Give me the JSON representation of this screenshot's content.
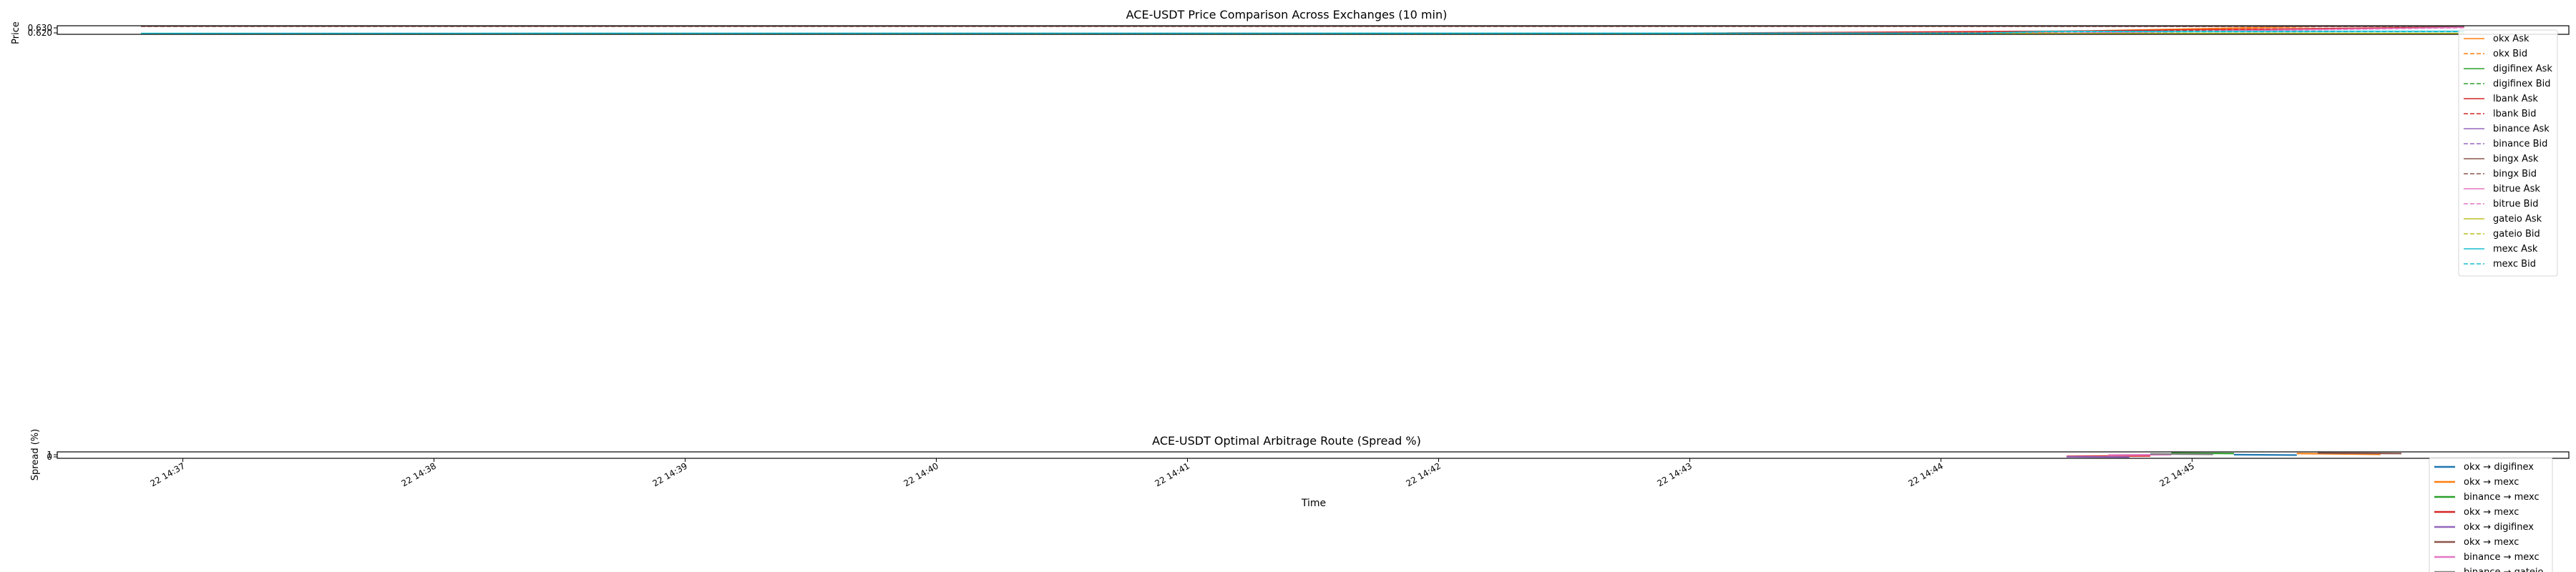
{
  "chart_data": [
    {
      "type": "line",
      "title": "ACE-USDT Price Comparison Across Exchanges (10 min)",
      "xlabel": "",
      "ylabel": "Price",
      "yticks": [
        "0.620",
        "0.630"
      ],
      "ylim": [
        0.618,
        0.631
      ],
      "x_range": [
        "22 14:36:30",
        "22 14:46:30"
      ],
      "grid": false,
      "legend_position": "upper right",
      "series": [
        {
          "name": "okx Ask",
          "color": "#ff7f0e",
          "style": "solid",
          "x": [
            "22 14:36:50",
            "22 14:40:00",
            "22 14:43:00",
            "22 14:44:20",
            "22 14:44:40",
            "22 14:45:30",
            "22 14:46:05"
          ],
          "y": [
            0.619,
            0.6195,
            0.62,
            0.621,
            0.624,
            0.63,
            0.6305
          ]
        },
        {
          "name": "okx Bid",
          "color": "#ff7f0e",
          "style": "dashed",
          "x": [
            "22 14:36:50",
            "22 14:40:00",
            "22 14:43:00",
            "22 14:44:20",
            "22 14:44:40",
            "22 14:45:30",
            "22 14:46:05"
          ],
          "y": [
            0.6185,
            0.619,
            0.6195,
            0.6205,
            0.6235,
            0.6295,
            0.63
          ]
        },
        {
          "name": "digifinex Ask",
          "color": "#2ca02c",
          "style": "solid",
          "x": [
            "22 14:36:50",
            "22 14:46:05"
          ],
          "y": [
            0.6192,
            0.6196
          ]
        },
        {
          "name": "digifinex Bid",
          "color": "#2ca02c",
          "style": "dashed",
          "x": [
            "22 14:36:50",
            "22 14:46:05"
          ],
          "y": [
            0.6183,
            0.6187
          ]
        },
        {
          "name": "lbank Ask",
          "color": "#d62728",
          "style": "solid",
          "x": [
            "22 14:36:50",
            "22 14:43:00",
            "22 14:44:30",
            "22 14:46:05"
          ],
          "y": [
            0.6193,
            0.6198,
            0.623,
            0.629
          ]
        },
        {
          "name": "lbank Bid",
          "color": "#d62728",
          "style": "dashed",
          "x": [
            "22 14:36:50",
            "22 14:43:00",
            "22 14:44:30",
            "22 14:46:05"
          ],
          "y": [
            0.6186,
            0.6191,
            0.6222,
            0.6282
          ]
        },
        {
          "name": "binance Ask",
          "color": "#9467bd",
          "style": "solid",
          "x": [
            "22 14:36:50",
            "22 14:44:00",
            "22 14:44:35",
            "22 14:45:00",
            "22 14:46:05"
          ],
          "y": [
            0.6305,
            0.6305,
            0.6305,
            0.6302,
            0.63
          ]
        },
        {
          "name": "binance Bid",
          "color": "#9467bd",
          "style": "dashed",
          "x": [
            "22 14:36:50",
            "22 14:44:00",
            "22 14:44:35",
            "22 14:45:00",
            "22 14:46:05"
          ],
          "y": [
            0.63,
            0.63,
            0.63,
            0.6298,
            0.6296
          ]
        },
        {
          "name": "bingx Ask",
          "color": "#8c564b",
          "style": "solid",
          "x": [
            "22 14:36:50",
            "22 14:46:05"
          ],
          "y": [
            0.6304,
            0.6304
          ]
        },
        {
          "name": "bingx Bid",
          "color": "#8c564b",
          "style": "dashed",
          "x": [
            "22 14:36:50",
            "22 14:46:05"
          ],
          "y": [
            0.6299,
            0.6299
          ]
        },
        {
          "name": "bitrue Ask",
          "color": "#e377c2",
          "style": "solid",
          "x": [
            "22 14:36:50",
            "22 14:44:30",
            "22 14:46:05"
          ],
          "y": [
            0.6194,
            0.62,
            0.6285
          ]
        },
        {
          "name": "bitrue Bid",
          "color": "#e377c2",
          "style": "dashed",
          "x": [
            "22 14:36:50",
            "22 14:44:30",
            "22 14:46:05"
          ],
          "y": [
            0.6188,
            0.6194,
            0.6279
          ]
        },
        {
          "name": "gateio Ask",
          "color": "#bcbd22",
          "style": "solid",
          "x": [
            "22 14:36:50",
            "22 14:46:05"
          ],
          "y": [
            0.6191,
            0.6193
          ]
        },
        {
          "name": "gateio Bid",
          "color": "#bcbd22",
          "style": "dashed",
          "x": [
            "22 14:36:50",
            "22 14:46:05"
          ],
          "y": [
            0.6182,
            0.6184
          ]
        },
        {
          "name": "mexc Ask",
          "color": "#17becf",
          "style": "solid",
          "x": [
            "22 14:36:50",
            "22 14:44:10",
            "22 14:44:25",
            "22 14:46:05"
          ],
          "y": [
            0.6196,
            0.62,
            0.6225,
            0.6228
          ]
        },
        {
          "name": "mexc Bid",
          "color": "#17becf",
          "style": "dashed",
          "x": [
            "22 14:36:50",
            "22 14:44:10",
            "22 14:44:25",
            "22 14:46:05"
          ],
          "y": [
            0.6189,
            0.6193,
            0.6218,
            0.6221
          ]
        }
      ]
    },
    {
      "type": "line",
      "title": "ACE-USDT Optimal Arbitrage Route (Spread %)",
      "xlabel": "Time",
      "ylabel": "Spread (%)",
      "yticks": [
        "0",
        "1"
      ],
      "ylim": [
        -0.2,
        1.4
      ],
      "x_ticks": [
        "22 14:37",
        "22 14:38",
        "22 14:39",
        "22 14:40",
        "22 14:41",
        "22 14:42",
        "22 14:43",
        "22 14:44",
        "22 14:45"
      ],
      "x_range": [
        "22 14:36:30",
        "22 14:46:30"
      ],
      "grid": false,
      "legend_position": "lower right",
      "series": [
        {
          "name": "okx → digifinex",
          "color": "#1f77b4",
          "x": [
            "22 14:45:10",
            "22 14:45:25"
          ],
          "y": [
            0.7,
            0.6
          ]
        },
        {
          "name": "okx → mexc",
          "color": "#ff7f0e",
          "x": [
            "22 14:45:25",
            "22 14:45:45"
          ],
          "y": [
            1.0,
            0.8
          ]
        },
        {
          "name": "binance → mexc",
          "color": "#2ca02c",
          "x": [
            "22 14:44:55",
            "22 14:45:10"
          ],
          "y": [
            1.1,
            1.0
          ]
        },
        {
          "name": "okx → mexc",
          "color": "#d62728",
          "x": [
            "22 14:44:30",
            "22 14:44:50"
          ],
          "y": [
            0.3,
            0.4
          ]
        },
        {
          "name": "okx → digifinex",
          "color": "#9467bd",
          "x": [
            "22 14:44:30",
            "22 14:44:45"
          ],
          "y": [
            0.2,
            0.1
          ]
        },
        {
          "name": "okx → mexc",
          "color": "#8c564b",
          "x": [
            "22 14:45:30",
            "22 14:45:50"
          ],
          "y": [
            1.1,
            1.0
          ]
        },
        {
          "name": "binance → mexc",
          "color": "#e377c2",
          "x": [
            "22 14:44:40",
            "22 14:44:55"
          ],
          "y": [
            0.6,
            0.7
          ]
        },
        {
          "name": "binance → gateio",
          "color": "#7f7f7f",
          "x": [
            "22 14:44:50",
            "22 14:45:05"
          ],
          "y": [
            0.9,
            0.8
          ]
        }
      ]
    }
  ]
}
